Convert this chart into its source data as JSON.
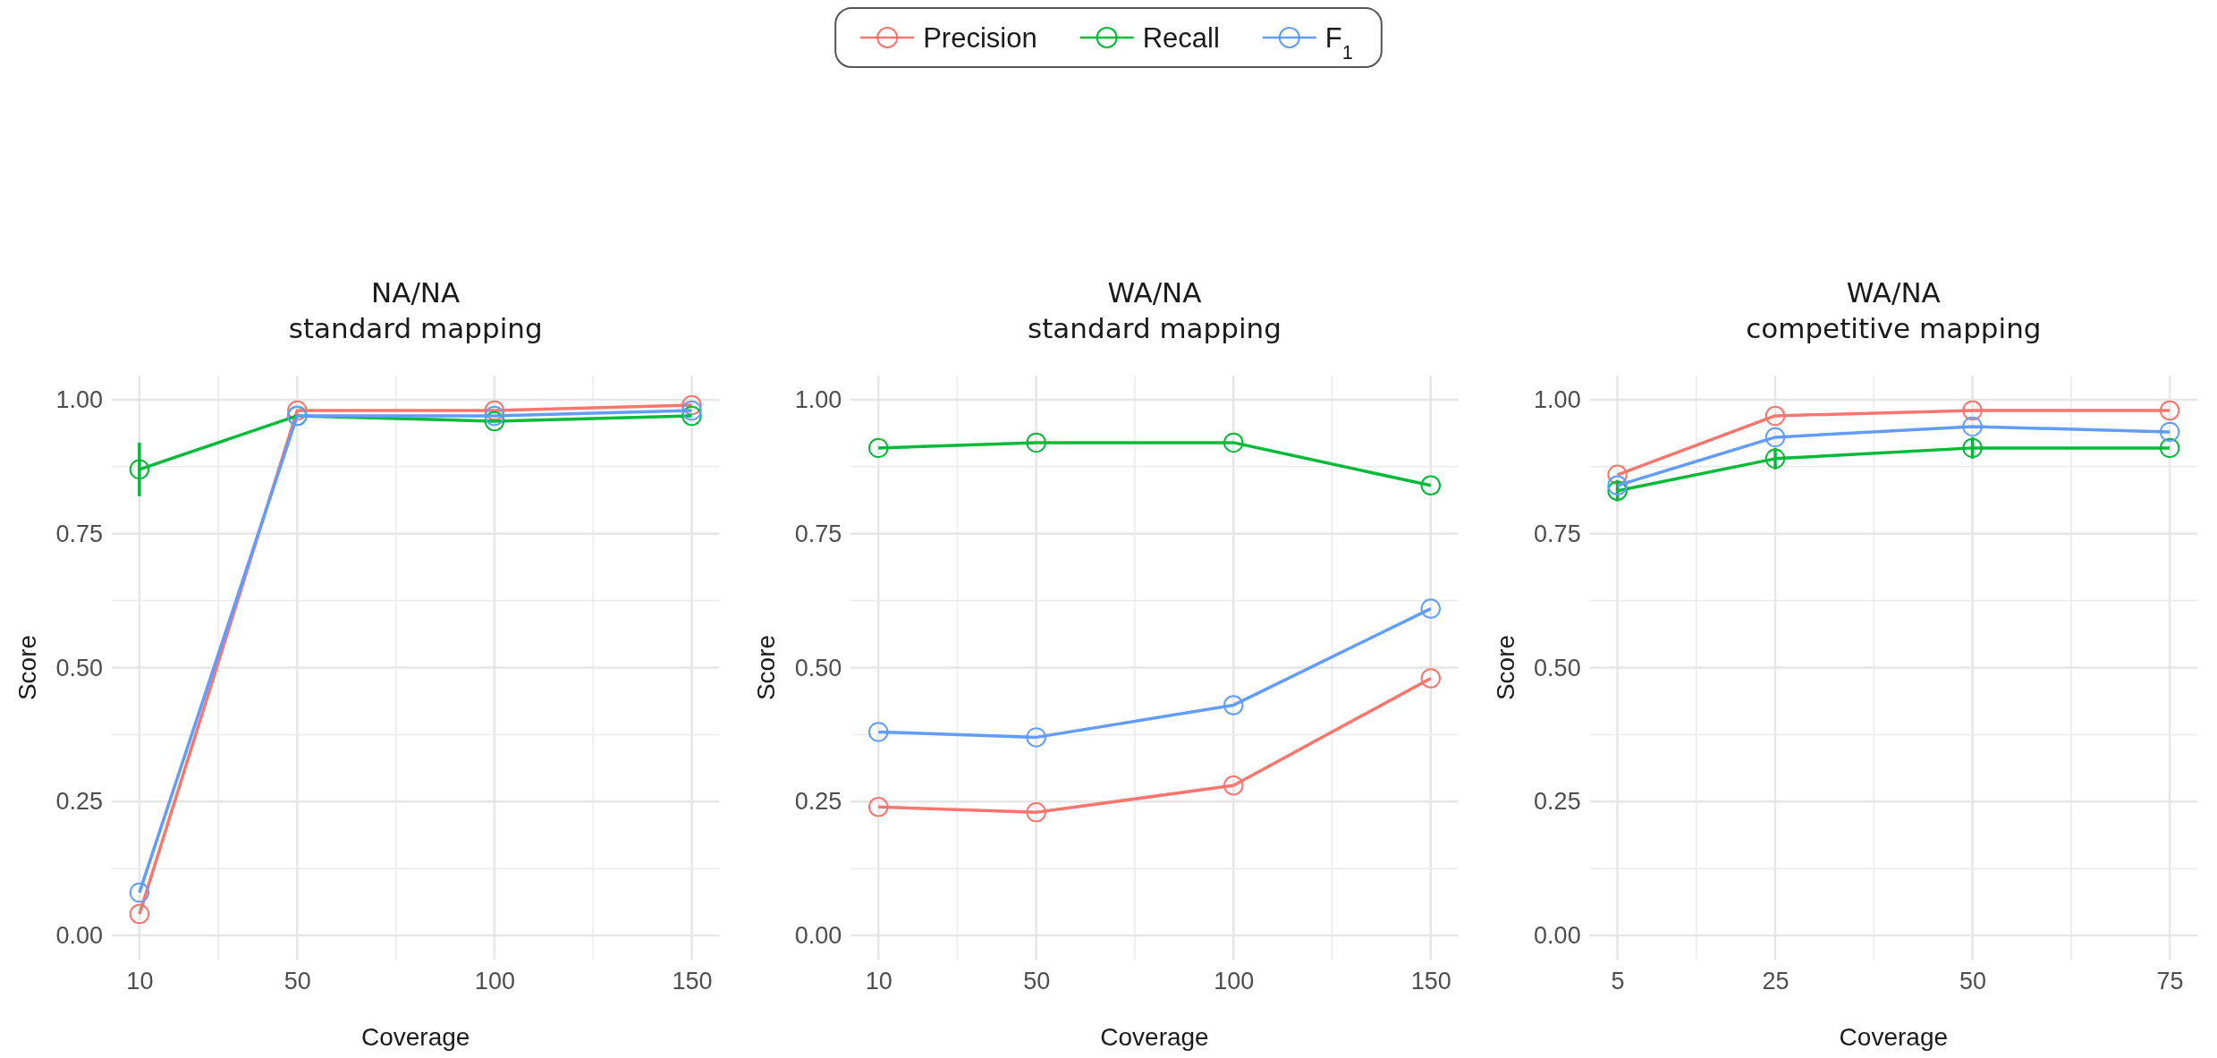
{
  "chart_data": [
    {
      "type": "line",
      "title": "NA/NA",
      "subtitle": "standard mapping",
      "xlabel": "Coverage",
      "ylabel": "Score",
      "x": [
        10,
        50,
        100,
        150
      ],
      "xlim": [
        3,
        157
      ],
      "xticks": [
        10,
        50,
        100,
        150
      ],
      "ylim": [
        -0.045,
        1.045
      ],
      "yticks": [
        {
          "value": 0,
          "label": "0.00"
        },
        {
          "value": 0.25,
          "label": "0.25"
        },
        {
          "value": 0.5,
          "label": "0.50"
        },
        {
          "value": 0.75,
          "label": "0.75"
        },
        {
          "value": 1,
          "label": "1.00"
        }
      ],
      "grid": true,
      "legend": "top",
      "marker": "circle",
      "line_style": "solid",
      "series": [
        {
          "name": "Precision",
          "color": "#f8766d",
          "values": [
            0.04,
            0.98,
            0.98,
            0.99
          ]
        },
        {
          "name": "Recall",
          "color": "#00ba38",
          "values": [
            0.87,
            0.97,
            0.96,
            0.97
          ],
          "errors": [
            0.05,
            null,
            null,
            null
          ]
        },
        {
          "name": "F$_{1}$",
          "color": "#619cff",
          "values": [
            0.08,
            0.97,
            0.97,
            0.98
          ]
        }
      ]
    },
    {
      "type": "line",
      "title": "WA/NA",
      "subtitle": "standard mapping",
      "xlabel": "Coverage",
      "ylabel": "Score",
      "x": [
        10,
        50,
        100,
        150
      ],
      "xlim": [
        3,
        157
      ],
      "xticks": [
        10,
        50,
        100,
        150
      ],
      "ylim": [
        -0.045,
        1.045
      ],
      "yticks": [
        {
          "value": 0,
          "label": "0.00"
        },
        {
          "value": 0.25,
          "label": "0.25"
        },
        {
          "value": 0.5,
          "label": "0.50"
        },
        {
          "value": 0.75,
          "label": "0.75"
        },
        {
          "value": 1,
          "label": "1.00"
        }
      ],
      "grid": true,
      "marker": "circle",
      "line_style": "solid",
      "series": [
        {
          "color": "#f8766d",
          "values": [
            0.24,
            0.23,
            0.28,
            0.48
          ]
        },
        {
          "color": "#00ba38",
          "values": [
            0.91,
            0.92,
            0.92,
            0.84
          ]
        },
        {
          "color": "#619cff",
          "values": [
            0.38,
            0.37,
            0.43,
            0.61
          ]
        }
      ]
    },
    {
      "type": "line",
      "title": "WA/NA",
      "subtitle": "competitive mapping",
      "xlabel": "Coverage",
      "ylabel": "Score",
      "x": [
        5,
        25,
        50,
        75
      ],
      "xlim": [
        1.5,
        78.5
      ],
      "xticks": [
        5,
        25,
        50,
        75
      ],
      "ylim": [
        -0.045,
        1.045
      ],
      "yticks": [
        {
          "value": 0,
          "label": "0.00"
        },
        {
          "value": 0.25,
          "label": "0.25"
        },
        {
          "value": 0.5,
          "label": "0.50"
        },
        {
          "value": 0.75,
          "label": "0.75"
        },
        {
          "value": 1,
          "label": "1.00"
        }
      ],
      "grid": true,
      "marker": "circle",
      "line_style": "solid",
      "series": [
        {
          "color": "#f8766d",
          "values": [
            0.86,
            0.97,
            0.98,
            0.98
          ]
        },
        {
          "color": "#00ba38",
          "values": [
            0.83,
            0.89,
            0.91,
            0.91
          ],
          "errors": [
            0.02,
            0.02,
            0.02,
            null
          ]
        },
        {
          "color": "#619cff",
          "values": [
            0.84,
            0.93,
            0.95,
            0.94
          ]
        }
      ]
    }
  ]
}
